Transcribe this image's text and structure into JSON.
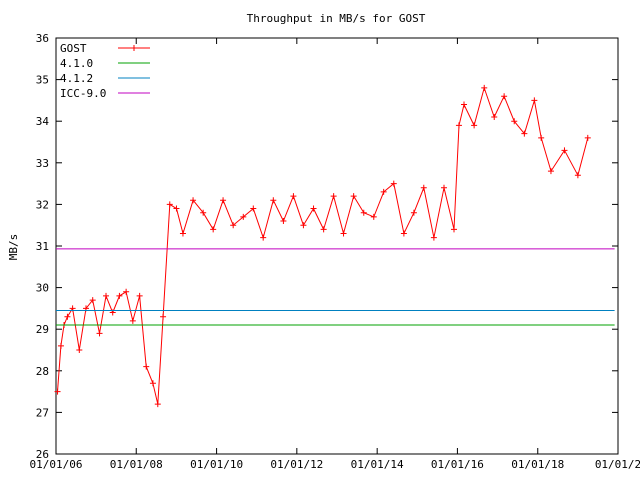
{
  "chart_data": {
    "type": "line",
    "title": "Throughput in MB/s for GOST",
    "xlabel": "",
    "ylabel": "MB/s",
    "xlim": [
      "2006-01-01",
      "2020-01-01"
    ],
    "ylim": [
      26,
      36
    ],
    "y_ticks": [
      "26",
      "27",
      "28",
      "29",
      "30",
      "31",
      "32",
      "33",
      "34",
      "35",
      "36"
    ],
    "x_ticks": [
      "01/01/06",
      "01/01/08",
      "01/01/10",
      "01/01/12",
      "01/01/14",
      "01/01/16",
      "01/01/18",
      "01/01/2"
    ],
    "grid": false,
    "legend_position": "top-left",
    "series": [
      {
        "name": "GOST",
        "color": "#ff0000",
        "style": "line-points",
        "marker": "plus",
        "x": [
          "2006-01-15",
          "2006-02-15",
          "2006-03-15",
          "2006-04-15",
          "2006-06-01",
          "2006-08-01",
          "2006-10-01",
          "2006-12-01",
          "2007-02-01",
          "2007-04-01",
          "2007-06-01",
          "2007-08-01",
          "2007-10-01",
          "2007-12-01",
          "2008-02-01",
          "2008-04-01",
          "2008-06-01",
          "2008-07-15",
          "2008-09-01",
          "2008-11-01",
          "2009-01-01",
          "2009-03-01",
          "2009-06-01",
          "2009-09-01",
          "2009-12-01",
          "2010-03-01",
          "2010-06-01",
          "2010-09-01",
          "2010-12-01",
          "2011-03-01",
          "2011-06-01",
          "2011-09-01",
          "2011-12-01",
          "2012-03-01",
          "2012-06-01",
          "2012-09-01",
          "2012-12-01",
          "2013-03-01",
          "2013-06-01",
          "2013-09-01",
          "2013-12-01",
          "2014-03-01",
          "2014-06-01",
          "2014-09-01",
          "2014-12-01",
          "2015-03-01",
          "2015-06-01",
          "2015-09-01",
          "2015-12-01",
          "2016-01-15",
          "2016-03-01",
          "2016-06-01",
          "2016-09-01",
          "2016-12-01",
          "2017-03-01",
          "2017-06-01",
          "2017-09-01",
          "2017-12-01",
          "2018-02-01",
          "2018-05-01",
          "2018-09-01",
          "2019-01-01",
          "2019-04-01"
        ],
        "y": [
          27.5,
          28.6,
          29.1,
          29.3,
          29.5,
          28.5,
          29.5,
          29.7,
          28.9,
          29.8,
          29.4,
          29.8,
          29.9,
          29.2,
          29.8,
          28.1,
          27.7,
          27.2,
          29.3,
          32.0,
          31.9,
          31.3,
          32.1,
          31.8,
          31.4,
          32.1,
          31.5,
          31.7,
          31.9,
          31.2,
          32.1,
          31.6,
          32.2,
          31.5,
          31.9,
          31.4,
          32.2,
          31.3,
          32.2,
          31.8,
          31.7,
          32.3,
          32.5,
          31.3,
          31.8,
          32.4,
          31.2,
          32.4,
          31.4,
          33.9,
          34.4,
          33.9,
          34.8,
          34.1,
          34.6,
          34.0,
          33.7,
          34.5,
          33.6,
          32.8,
          33.3,
          32.7,
          33.6
        ]
      },
      {
        "name": "4.1.0",
        "color": "#00a000",
        "style": "line",
        "x": [
          "2006-01-01",
          "2019-12-01"
        ],
        "y": [
          29.1,
          29.1
        ]
      },
      {
        "name": "4.1.2",
        "color": "#0080c0",
        "style": "line",
        "x": [
          "2006-01-01",
          "2019-12-01"
        ],
        "y": [
          29.45,
          29.45
        ]
      },
      {
        "name": "ICC-9.0",
        "color": "#c000c0",
        "style": "line",
        "x": [
          "2006-01-01",
          "2019-12-01"
        ],
        "y": [
          30.93,
          30.93
        ]
      }
    ]
  }
}
